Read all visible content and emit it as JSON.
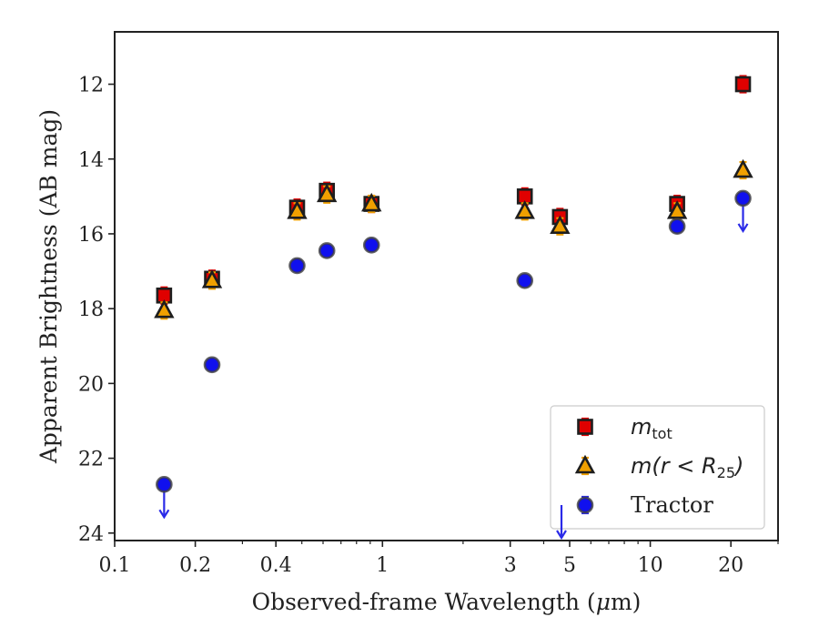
{
  "chart_data": {
    "type": "scatter",
    "xlabel_text": "Observed-frame Wavelength (",
    "xlabel_unit_mu": "μ",
    "xlabel_unit_rest": "m)",
    "ylabel": "Apparent Brightness (AB mag)",
    "x_scale": "log",
    "xlim": [
      0.1,
      30
    ],
    "ylim": [
      24.2,
      10.6
    ],
    "y_inverted": true,
    "x_ticks": [
      0.1,
      0.2,
      0.4,
      1,
      3,
      5,
      10,
      20
    ],
    "x_tick_labels": [
      "0.1",
      "0.2",
      "0.4",
      "1",
      "3",
      "5",
      "10",
      "20"
    ],
    "y_ticks": [
      12,
      14,
      16,
      18,
      20,
      22,
      24
    ],
    "y_tick_labels": [
      "12",
      "14",
      "16",
      "18",
      "20",
      "22",
      "24"
    ],
    "legend_position": "lower-right",
    "series": [
      {
        "name_main": "m",
        "name_sub": "tot",
        "marker": "square",
        "face_color": "#e00000",
        "edge_color": "#1e1e1e",
        "error_color": "#e00000",
        "points": [
          {
            "x": 0.153,
            "y": 17.65
          },
          {
            "x": 0.231,
            "y": 17.2
          },
          {
            "x": 0.48,
            "y": 15.3
          },
          {
            "x": 0.62,
            "y": 14.85
          },
          {
            "x": 0.91,
            "y": 15.2
          },
          {
            "x": 3.4,
            "y": 15.0
          },
          {
            "x": 4.6,
            "y": 15.55
          },
          {
            "x": 12.6,
            "y": 15.2
          },
          {
            "x": 22.2,
            "y": 12.0
          }
        ]
      },
      {
        "name_main": "m(r < R",
        "name_sub": "25",
        "name_tail": ")",
        "marker": "triangle",
        "face_color": "#f0a000",
        "edge_color": "#1e1e1e",
        "error_color": "#f0a000",
        "points": [
          {
            "x": 0.153,
            "y": 18.05
          },
          {
            "x": 0.231,
            "y": 17.25
          },
          {
            "x": 0.48,
            "y": 15.4
          },
          {
            "x": 0.62,
            "y": 14.95
          },
          {
            "x": 0.91,
            "y": 15.2
          },
          {
            "x": 3.4,
            "y": 15.4
          },
          {
            "x": 4.6,
            "y": 15.8
          },
          {
            "x": 12.6,
            "y": 15.4
          },
          {
            "x": 22.2,
            "y": 14.3
          }
        ]
      },
      {
        "name": "Tractor",
        "marker": "circle",
        "face_color": "#1010ee",
        "edge_color": "#404040",
        "error_color": "#2a2ae8",
        "points": [
          {
            "x": 0.153,
            "y": 22.7,
            "upper_limit": true
          },
          {
            "x": 0.231,
            "y": 19.5
          },
          {
            "x": 0.48,
            "y": 16.85
          },
          {
            "x": 0.62,
            "y": 16.45
          },
          {
            "x": 0.91,
            "y": 16.3
          },
          {
            "x": 3.4,
            "y": 17.25
          },
          {
            "x": 12.6,
            "y": 15.8
          },
          {
            "x": 22.2,
            "y": 15.05,
            "upper_limit": true
          }
        ]
      }
    ]
  }
}
